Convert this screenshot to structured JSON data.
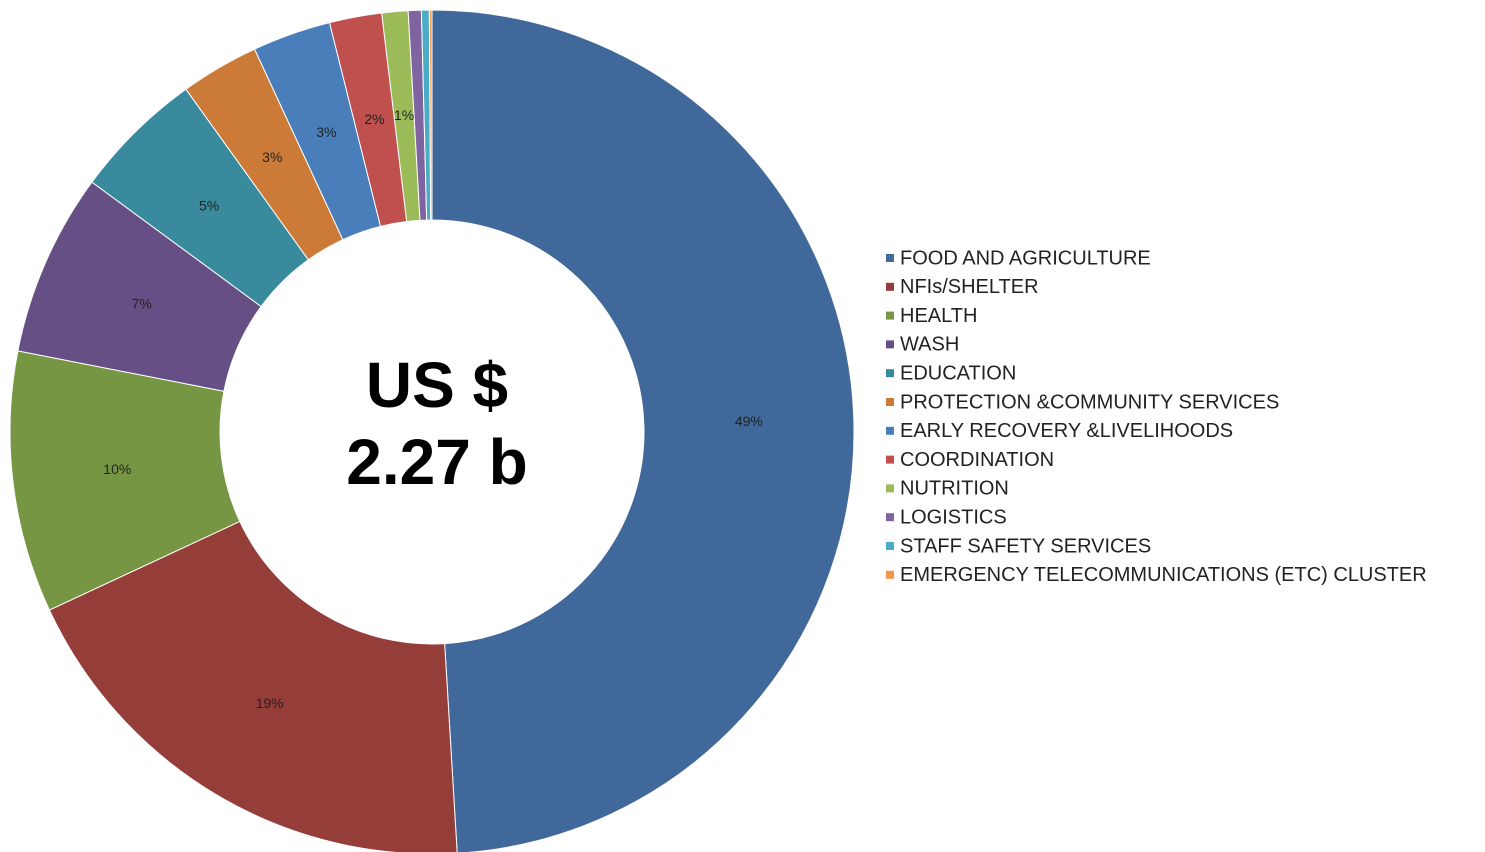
{
  "chart_data": {
    "type": "donut",
    "center_text": [
      "US $",
      "2.27 b"
    ],
    "categories": [
      "FOOD AND AGRICULTURE",
      "NFIs/SHELTER",
      "HEALTH",
      "WASH",
      "EDUCATION",
      "PROTECTION &COMMUNITY SERVICES",
      "EARLY RECOVERY &LIVELIHOODS",
      "COORDINATION",
      "NUTRITION",
      "LOGISTICS",
      "STAFF SAFETY SERVICES",
      "EMERGENCY TELECOMMUNICATIONS (ETC) CLUSTER"
    ],
    "values": [
      49,
      19,
      10,
      7,
      5,
      3,
      3,
      2,
      1,
      0.5,
      0.3,
      0.1
    ],
    "value_labels": [
      "49%",
      "19%",
      "10%",
      "7%",
      "5%",
      "3%",
      "3%",
      "2%",
      "1%",
      null,
      null,
      null
    ],
    "colors": [
      "#41689a",
      "#953d39",
      "#779643",
      "#664f84",
      "#3a8a9e",
      "#cc7a37",
      "#4a7ebb",
      "#c0504d",
      "#9bbb59",
      "#8064a2",
      "#4bacc6",
      "#f79646"
    ],
    "legend": "right"
  }
}
